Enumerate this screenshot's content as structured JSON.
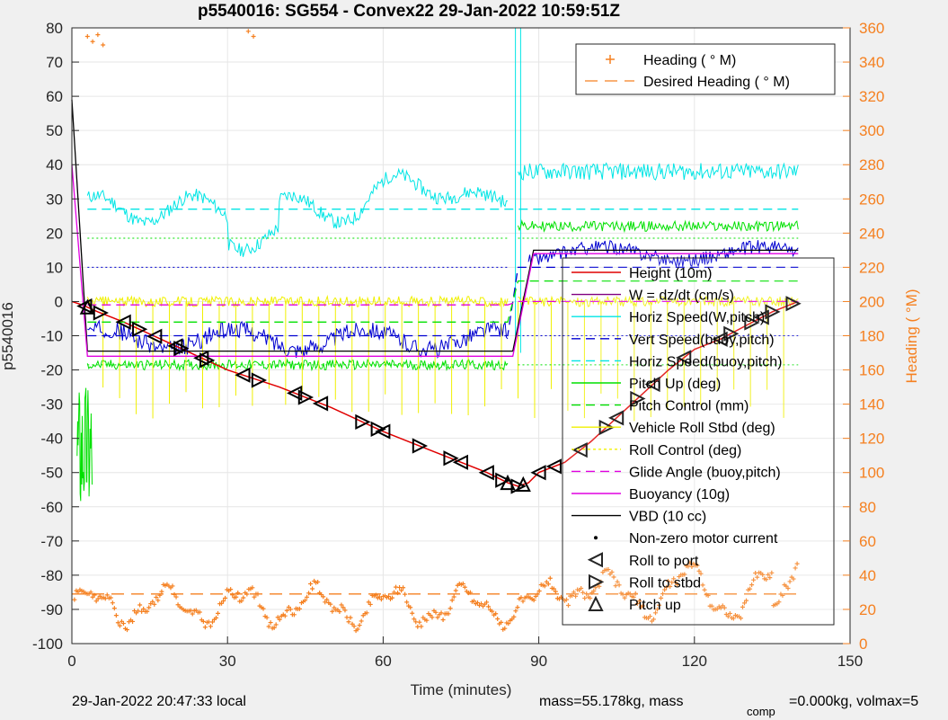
{
  "chart_data": {
    "type": "line",
    "title": "p5540016: SG554 - Convex22 29-Jan-2022 10:59:51Z",
    "xlabel": "Time (minutes)",
    "ylabel": "p5540016",
    "ylabel_right": "Heading (  °M)",
    "xlim": [
      0,
      150
    ],
    "ylim": [
      -100,
      80
    ],
    "ylim_right": [
      0,
      360
    ],
    "x_ticks": [
      "0",
      "30",
      "60",
      "90",
      "120",
      "150"
    ],
    "y_ticks": [
      "-100",
      "-90",
      "-80",
      "-70",
      "-60",
      "-50",
      "-40",
      "-30",
      "-20",
      "-10",
      "0",
      "10",
      "20",
      "30",
      "40",
      "50",
      "60",
      "70",
      "80"
    ],
    "y_ticks_right": [
      "0",
      "20",
      "40",
      "60",
      "80",
      "100",
      "120",
      "140",
      "160",
      "180",
      "200",
      "220",
      "240",
      "260",
      "280",
      "300",
      "320",
      "340",
      "360"
    ],
    "grid": true,
    "legend_heading": [
      "Heading (  ° M)",
      "Desired Heading (   ° M)"
    ],
    "legend_main": [
      "Height (10m)",
      "W = dz/dt (cm/s)",
      "Horiz Speed(W,pitch)",
      "Vert Speed(buoy,pitch)",
      "Horiz Speed(buoy,pitch)",
      "Pitch Up (deg)",
      "Pitch Control (mm)",
      "Vehicle Roll Stbd (deg)",
      "Roll Control (deg)",
      "Glide Angle (buoy,pitch)",
      "Buoyancy (10g)",
      "VBD (10 cc)",
      "Non-zero motor current",
      "Roll to port",
      "Roll to stbd",
      "Pitch up"
    ],
    "colors": {
      "height": "#e00000",
      "w": "#800080",
      "horiz": "#00e5e5",
      "vert": "#0000d0",
      "horiz_buoy": "#00e5e5",
      "pitch": "#00e000",
      "pitch_ctrl": "#00e000",
      "roll": "#f0f000",
      "roll_ctrl": "#f0f000",
      "glide": "#e000e0",
      "buoy": "#e000e0",
      "vbd": "#000000",
      "heading": "#f58020"
    },
    "series": [
      {
        "name": "Height (10m)",
        "x": [
          0,
          2,
          5,
          10,
          20,
          30,
          40,
          50,
          60,
          70,
          80,
          84,
          86,
          88,
          90,
          95,
          100,
          105,
          110,
          115,
          120,
          125,
          130,
          135,
          140
        ],
        "y": [
          0,
          -1,
          -3,
          -6,
          -13,
          -20,
          -25,
          -31,
          -38,
          -44,
          -50,
          -53,
          -54,
          -53,
          -50,
          -47,
          -41,
          -34,
          -27,
          -20,
          -14,
          -11,
          -7,
          -3,
          0
        ]
      },
      {
        "name": "VBD (10 cc)",
        "x": [
          0,
          3,
          85,
          89,
          140
        ],
        "y": [
          59,
          -14.5,
          -14.5,
          15,
          15
        ]
      },
      {
        "name": "Buoyancy (10g)",
        "x": [
          0,
          3,
          85,
          89,
          140
        ],
        "y": [
          40,
          -16,
          -16,
          14,
          14
        ]
      },
      {
        "name": "Horiz Speed(buoy,pitch)",
        "x": [
          3,
          84,
          87,
          140
        ],
        "y": [
          27,
          27,
          27,
          27
        ]
      },
      {
        "name": "Vert Speed(buoy,pitch)",
        "x": [
          3,
          84,
          86,
          140
        ],
        "y": [
          -10,
          -10,
          10,
          10
        ]
      },
      {
        "name": "Pitch Control (mm)",
        "x": [
          3,
          84,
          86,
          140
        ],
        "y": [
          -6,
          -6,
          6,
          6
        ]
      },
      {
        "name": "Glide Angle (buoy,pitch)",
        "x": [
          3,
          84,
          86,
          140
        ],
        "y": [
          -1,
          -1,
          0,
          0
        ]
      },
      {
        "name": "Desired Heading (   ° M)",
        "x": [
          0,
          140
        ],
        "y": [
          29,
          29
        ]
      }
    ],
    "reference_lines": [
      {
        "y": 18.5,
        "x": [
          3,
          84
        ],
        "color": "#00e000"
      },
      {
        "y": -18.5,
        "x": [
          3,
          84
        ],
        "color": "#00e000"
      },
      {
        "y": 10,
        "x": [
          3,
          84
        ],
        "color": "#0000d0"
      },
      {
        "y": -10,
        "x": [
          86,
          140
        ],
        "color": "#0000d0"
      },
      {
        "y": 18.5,
        "x": [
          86,
          140
        ],
        "color": "#00e000"
      },
      {
        "y": -18.5,
        "x": [
          86,
          140
        ],
        "color": "#00e000"
      }
    ],
    "roll_port_times": [
      2.5,
      10,
      16,
      20,
      25,
      33,
      43,
      48,
      60,
      75,
      80,
      90,
      93,
      98,
      105,
      112,
      118,
      125,
      133
    ],
    "roll_stbd_times": [
      5.5,
      13,
      21,
      26,
      36,
      45,
      56,
      59,
      67,
      73,
      83,
      86,
      103,
      109,
      127,
      131,
      135,
      139
    ],
    "pitch_up_times": [
      3,
      84,
      87
    ]
  },
  "footer": {
    "local_time": "29-Jan-2022 20:47:33 local",
    "mass": "mass=55.178kg, mass",
    "comp_sub": "comp",
    "volmax": "=0.000kg, volmax=5"
  }
}
